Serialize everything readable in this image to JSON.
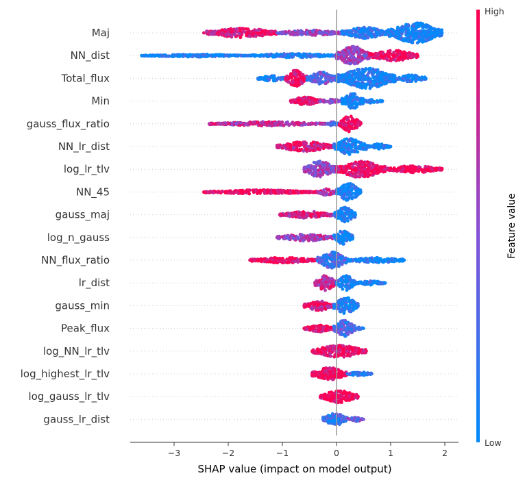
{
  "chart_data": {
    "type": "scatter",
    "subtype": "shap-beeswarm",
    "title": "",
    "xlabel": "SHAP value (impact on model output)",
    "ylabel": "",
    "xlim": [
      -3.9,
      2.3
    ],
    "xticks": [
      -3,
      -2,
      -1,
      0,
      1,
      2
    ],
    "xtick_labels": [
      "−3",
      "−2",
      "−1",
      "0",
      "1",
      "2"
    ],
    "grid": false,
    "colorbar": {
      "title": "Feature value",
      "high_label": "High",
      "low_label": "Low",
      "low_color": "#008bfb",
      "high_color": "#ff0051"
    },
    "features": [
      {
        "name": "Maj",
        "min": -2.45,
        "max": 1.95,
        "segments": [
          {
            "from": -2.4,
            "to": -1.1,
            "h": 7,
            "c": 0.88
          },
          {
            "from": -1.1,
            "to": 0.1,
            "h": 4,
            "c": 0.55
          },
          {
            "from": 0.1,
            "to": 0.95,
            "h": 8,
            "c": 0.12
          },
          {
            "from": 0.95,
            "to": 1.95,
            "h": 15,
            "c": 0.04
          }
        ]
      },
      {
        "name": "NN_dist",
        "min": -3.6,
        "max": 1.5,
        "segments": [
          {
            "from": -3.6,
            "to": -1.6,
            "h": 2,
            "c": 0.02
          },
          {
            "from": -1.6,
            "to": 0.0,
            "h": 3,
            "c": 0.05
          },
          {
            "from": 0.0,
            "to": 0.6,
            "h": 14,
            "c": 0.58
          },
          {
            "from": 0.6,
            "to": 1.5,
            "h": 8,
            "c": 0.95
          }
        ]
      },
      {
        "name": "Total_flux",
        "min": -1.45,
        "max": 1.65,
        "segments": [
          {
            "from": -1.45,
            "to": -0.95,
            "h": 4,
            "c": 0.1
          },
          {
            "from": -0.95,
            "to": -0.55,
            "h": 12,
            "c": 0.92
          },
          {
            "from": -0.55,
            "to": 0.0,
            "h": 9,
            "c": 0.35
          },
          {
            "from": 0.0,
            "to": 1.1,
            "h": 15,
            "c": 0.05
          },
          {
            "from": 1.1,
            "to": 1.65,
            "h": 5,
            "c": 0.05
          }
        ]
      },
      {
        "name": "Min",
        "min": -0.85,
        "max": 0.85,
        "segments": [
          {
            "from": -0.85,
            "to": -0.3,
            "h": 6,
            "c": 0.9
          },
          {
            "from": -0.3,
            "to": 0.1,
            "h": 3,
            "c": 0.5
          },
          {
            "from": 0.1,
            "to": 0.5,
            "h": 11,
            "c": 0.05
          },
          {
            "from": 0.5,
            "to": 0.85,
            "h": 3,
            "c": 0.05
          }
        ]
      },
      {
        "name": "gauss_flux_ratio",
        "min": -2.35,
        "max": 0.45,
        "segments": [
          {
            "from": -2.35,
            "to": -0.2,
            "h": 3,
            "c": 0.7
          },
          {
            "from": -0.2,
            "to": 0.05,
            "h": 3,
            "c": 0.3
          },
          {
            "from": 0.05,
            "to": 0.45,
            "h": 12,
            "c": 0.97
          }
        ]
      },
      {
        "name": "NN_lr_dist",
        "min": -1.1,
        "max": 1.0,
        "segments": [
          {
            "from": -1.1,
            "to": -0.05,
            "h": 7,
            "c": 0.82
          },
          {
            "from": -0.05,
            "to": 0.55,
            "h": 12,
            "c": 0.05
          },
          {
            "from": 0.55,
            "to": 1.0,
            "h": 4,
            "c": 0.05
          }
        ]
      },
      {
        "name": "log_lr_tlv",
        "min": -0.6,
        "max": 1.95,
        "segments": [
          {
            "from": -0.6,
            "to": 0.0,
            "h": 12,
            "c": 0.55
          },
          {
            "from": 0.0,
            "to": 0.9,
            "h": 12,
            "c": 0.95
          },
          {
            "from": 0.9,
            "to": 1.95,
            "h": 5,
            "c": 0.98
          }
        ]
      },
      {
        "name": "NN_45",
        "min": -2.45,
        "max": 0.45,
        "segments": [
          {
            "from": -2.45,
            "to": -0.35,
            "h": 3,
            "c": 0.99
          },
          {
            "from": -0.35,
            "to": 0.0,
            "h": 5,
            "c": 0.7
          },
          {
            "from": 0.0,
            "to": 0.45,
            "h": 13,
            "c": 0.05
          }
        ]
      },
      {
        "name": "gauss_maj",
        "min": -1.05,
        "max": 0.35,
        "segments": [
          {
            "from": -1.05,
            "to": -0.05,
            "h": 5,
            "c": 0.82
          },
          {
            "from": -0.05,
            "to": 0.35,
            "h": 11,
            "c": 0.05
          }
        ]
      },
      {
        "name": "log_n_gauss",
        "min": -1.1,
        "max": 0.3,
        "segments": [
          {
            "from": -1.1,
            "to": -0.05,
            "h": 5,
            "c": 0.62
          },
          {
            "from": -0.05,
            "to": 0.3,
            "h": 10,
            "c": 0.04
          }
        ]
      },
      {
        "name": "NN_flux_ratio",
        "min": -1.6,
        "max": 1.25,
        "segments": [
          {
            "from": -1.6,
            "to": -0.35,
            "h": 4,
            "c": 0.92
          },
          {
            "from": -0.35,
            "to": 0.2,
            "h": 12,
            "c": 0.25
          },
          {
            "from": 0.2,
            "to": 1.25,
            "h": 4,
            "c": 0.05
          }
        ]
      },
      {
        "name": "lr_dist",
        "min": -0.4,
        "max": 0.9,
        "segments": [
          {
            "from": -0.4,
            "to": 0.0,
            "h": 11,
            "c": 0.72
          },
          {
            "from": 0.0,
            "to": 0.35,
            "h": 11,
            "c": 0.05
          },
          {
            "from": 0.35,
            "to": 0.9,
            "h": 3,
            "c": 0.05
          }
        ]
      },
      {
        "name": "gauss_min",
        "min": -0.6,
        "max": 0.4,
        "segments": [
          {
            "from": -0.6,
            "to": -0.05,
            "h": 7,
            "c": 0.85
          },
          {
            "from": -0.05,
            "to": 0.4,
            "h": 12,
            "c": 0.12
          }
        ]
      },
      {
        "name": "Peak_flux",
        "min": -0.6,
        "max": 0.5,
        "segments": [
          {
            "from": -0.6,
            "to": -0.05,
            "h": 5,
            "c": 0.92
          },
          {
            "from": -0.05,
            "to": 0.35,
            "h": 12,
            "c": 0.3
          },
          {
            "from": 0.35,
            "to": 0.5,
            "h": 2,
            "c": 0.05
          }
        ]
      },
      {
        "name": "log_NN_lr_tlv",
        "min": -0.45,
        "max": 0.55,
        "segments": [
          {
            "from": -0.45,
            "to": 0.55,
            "h": 9,
            "c": 0.93
          }
        ]
      },
      {
        "name": "log_highest_lr_tlv",
        "min": -0.45,
        "max": 0.65,
        "segments": [
          {
            "from": -0.45,
            "to": 0.2,
            "h": 9,
            "c": 0.95
          },
          {
            "from": 0.2,
            "to": 0.65,
            "h": 3,
            "c": 0.2
          }
        ]
      },
      {
        "name": "log_gauss_lr_tlv",
        "min": -0.3,
        "max": 0.4,
        "segments": [
          {
            "from": -0.3,
            "to": 0.4,
            "h": 9,
            "c": 0.97
          }
        ]
      },
      {
        "name": "gauss_lr_dist",
        "min": -0.25,
        "max": 0.5,
        "segments": [
          {
            "from": -0.25,
            "to": 0.2,
            "h": 9,
            "c": 0.2
          },
          {
            "from": 0.2,
            "to": 0.5,
            "h": 3,
            "c": 0.45
          }
        ]
      }
    ]
  }
}
